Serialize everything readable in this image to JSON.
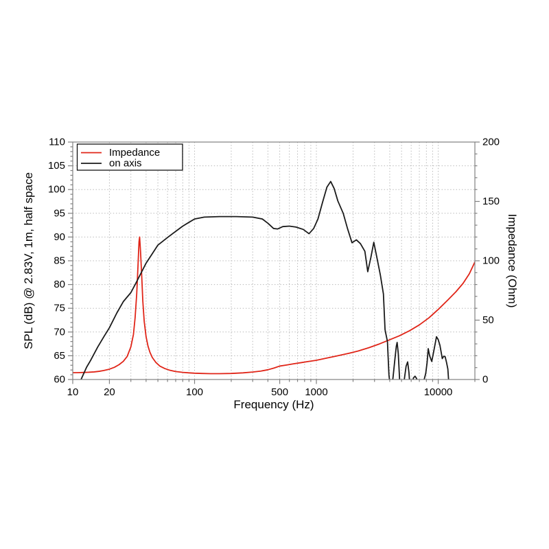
{
  "chart_data": {
    "type": "line",
    "background": "#ffffff",
    "frame_color": "#808080",
    "grid": {
      "color": "#b5b5b5",
      "style": "dotted"
    },
    "x_axis": {
      "label": "Frequency (Hz)",
      "scale": "log",
      "min": 10,
      "max": 20000,
      "major_ticks": [
        10,
        20,
        100,
        500,
        1000,
        10000
      ],
      "major_tick_labels": [
        "10",
        "20",
        "100",
        "500",
        "1000",
        "10000"
      ]
    },
    "y_left": {
      "label": "SPL (dB) @ 2.83V, 1m, half space",
      "min": 60,
      "max": 110,
      "major_step": 5,
      "minor_step": 1,
      "major_tick_labels": [
        "60",
        "65",
        "70",
        "75",
        "80",
        "85",
        "90",
        "95",
        "100",
        "105",
        "110"
      ]
    },
    "y_right": {
      "label": "Impedance (Ohm)",
      "min": 0,
      "max": 200,
      "major_step": 50,
      "minor_step": 10,
      "major_tick_labels": [
        "0",
        "50",
        "100",
        "150",
        "200"
      ]
    },
    "legend": {
      "position": "top-left",
      "entries": [
        "Impedance",
        "on axis"
      ]
    },
    "series": [
      {
        "name": "Impedance",
        "axis": "right",
        "color": "#e02417",
        "units": "Ohm",
        "points": [
          [
            10,
            5.7
          ],
          [
            11,
            5.8
          ],
          [
            12,
            5.9
          ],
          [
            13.5,
            6.1
          ],
          [
            15,
            6.4
          ],
          [
            16.5,
            6.9
          ],
          [
            18,
            7.6
          ],
          [
            20,
            8.7
          ],
          [
            22,
            10.3
          ],
          [
            24,
            12.5
          ],
          [
            26,
            15.3
          ],
          [
            28,
            19.5
          ],
          [
            30,
            27.5
          ],
          [
            31.5,
            38
          ],
          [
            32.5,
            52
          ],
          [
            33.5,
            72
          ],
          [
            34.3,
            95
          ],
          [
            35,
            116
          ],
          [
            35.4,
            120
          ],
          [
            36,
            108
          ],
          [
            36.8,
            88
          ],
          [
            37.6,
            66
          ],
          [
            38.6,
            49
          ],
          [
            40,
            36
          ],
          [
            41.5,
            28
          ],
          [
            43,
            23
          ],
          [
            45,
            18.5
          ],
          [
            48,
            14.5
          ],
          [
            52,
            11.2
          ],
          [
            57,
            9.2
          ],
          [
            63,
            7.7
          ],
          [
            70,
            6.7
          ],
          [
            80,
            6.0
          ],
          [
            90,
            5.6
          ],
          [
            100,
            5.3
          ],
          [
            115,
            5.1
          ],
          [
            135,
            4.9
          ],
          [
            160,
            4.9
          ],
          [
            200,
            5.1
          ],
          [
            250,
            5.6
          ],
          [
            300,
            6.3
          ],
          [
            350,
            7.1
          ],
          [
            400,
            8.2
          ],
          [
            450,
            9.7
          ],
          [
            500,
            11.3
          ],
          [
            570,
            12.2
          ],
          [
            650,
            13.2
          ],
          [
            750,
            14.2
          ],
          [
            850,
            15.1
          ],
          [
            1000,
            16.2
          ],
          [
            1200,
            17.9
          ],
          [
            1500,
            20
          ],
          [
            1800,
            21.8
          ],
          [
            2200,
            24
          ],
          [
            2700,
            26.8
          ],
          [
            3300,
            30
          ],
          [
            4000,
            33.5
          ],
          [
            4800,
            36.8
          ],
          [
            5800,
            41
          ],
          [
            7000,
            46
          ],
          [
            8400,
            52
          ],
          [
            10000,
            59
          ],
          [
            12000,
            67
          ],
          [
            14000,
            74
          ],
          [
            16000,
            81
          ],
          [
            18000,
            89
          ],
          [
            20000,
            99
          ]
        ]
      },
      {
        "name": "on axis",
        "axis": "left",
        "color": "#1a1a1a",
        "units": "dB",
        "points": [
          [
            10.8,
            57
          ],
          [
            11.7,
            60
          ],
          [
            13,
            62.6
          ],
          [
            14,
            64
          ],
          [
            16,
            66.8
          ],
          [
            18,
            69
          ],
          [
            20,
            70.9
          ],
          [
            23,
            74
          ],
          [
            26,
            76.4
          ],
          [
            30,
            78.3
          ],
          [
            33,
            80.3
          ],
          [
            36,
            82.2
          ],
          [
            40,
            84.5
          ],
          [
            45,
            86.5
          ],
          [
            50,
            88.3
          ],
          [
            60,
            89.9
          ],
          [
            70,
            91.2
          ],
          [
            80,
            92.3
          ],
          [
            90,
            93.1
          ],
          [
            100,
            93.8
          ],
          [
            120,
            94.2
          ],
          [
            160,
            94.3
          ],
          [
            220,
            94.3
          ],
          [
            300,
            94.2
          ],
          [
            360,
            93.8
          ],
          [
            400,
            92.9
          ],
          [
            445,
            91.8
          ],
          [
            480,
            91.7
          ],
          [
            530,
            92.2
          ],
          [
            600,
            92.3
          ],
          [
            680,
            92.1
          ],
          [
            780,
            91.6
          ],
          [
            870,
            90.7
          ],
          [
            950,
            91.8
          ],
          [
            1030,
            93.8
          ],
          [
            1120,
            97.2
          ],
          [
            1220,
            100.5
          ],
          [
            1310,
            101.7
          ],
          [
            1400,
            100.2
          ],
          [
            1500,
            97.6
          ],
          [
            1660,
            95.0
          ],
          [
            1800,
            91.8
          ],
          [
            1960,
            88.8
          ],
          [
            2130,
            89.4
          ],
          [
            2300,
            88.6
          ],
          [
            2500,
            87.0
          ],
          [
            2640,
            82.7
          ],
          [
            2800,
            85.7
          ],
          [
            2960,
            88.9
          ],
          [
            3120,
            86.0
          ],
          [
            3350,
            82.0
          ],
          [
            3550,
            78.0
          ],
          [
            3660,
            70.5
          ],
          [
            3740,
            69.3
          ],
          [
            3830,
            68.0
          ],
          [
            3940,
            61.0
          ],
          [
            4100,
            57.0
          ],
          [
            4260,
            60.5
          ],
          [
            4420,
            64.5
          ],
          [
            4530,
            67.0
          ],
          [
            4600,
            67.8
          ],
          [
            4700,
            65.5
          ],
          [
            4820,
            60.0
          ],
          [
            4940,
            56.5
          ],
          [
            5150,
            58.0
          ],
          [
            5300,
            60.5
          ],
          [
            5450,
            62.8
          ],
          [
            5610,
            63.7
          ],
          [
            5750,
            61.5
          ],
          [
            5900,
            57.5
          ],
          [
            6100,
            58.5
          ],
          [
            6250,
            60.3
          ],
          [
            6450,
            60.7
          ],
          [
            6650,
            60.2
          ],
          [
            6850,
            58.8
          ],
          [
            7200,
            58.6
          ],
          [
            7600,
            59.6
          ],
          [
            7900,
            61.3
          ],
          [
            8100,
            63.5
          ],
          [
            8280,
            66.5
          ],
          [
            8500,
            65.0
          ],
          [
            8850,
            63.8
          ],
          [
            9200,
            66.0
          ],
          [
            9680,
            69.0
          ],
          [
            10000,
            68.4
          ],
          [
            10330,
            67.2
          ],
          [
            10600,
            65.6
          ],
          [
            10800,
            64.4
          ],
          [
            11100,
            64.9
          ],
          [
            11400,
            64.8
          ],
          [
            11700,
            63.6
          ],
          [
            12000,
            62.2
          ],
          [
            12380,
            57
          ]
        ]
      }
    ]
  }
}
